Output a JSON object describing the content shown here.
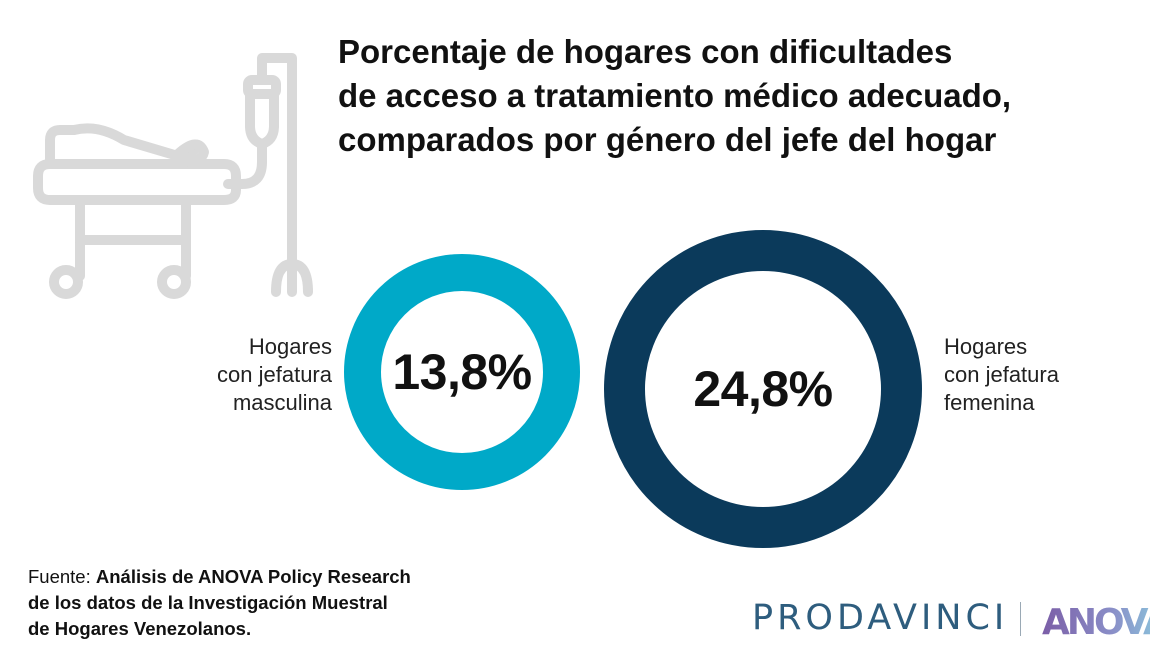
{
  "chart_data": {
    "type": "donut",
    "title_lines": [
      "Porcentaje de hogares con dificultades",
      "de acceso a tratamiento médico adecuado,",
      "comparados por género del jefe del hogar"
    ],
    "series": [
      {
        "label_lines": [
          "Hogares",
          "con jefatura",
          "masculina"
        ],
        "value": 13.8,
        "display": "13,8%",
        "color": "#00a9c8"
      },
      {
        "label_lines": [
          "Hogares",
          "con jefatura",
          "femenina"
        ],
        "value": 24.8,
        "display": "24,8%",
        "color": "#0b3a5b"
      }
    ]
  },
  "source": {
    "prefix": "Fuente: ",
    "lines": [
      "Análisis de ANOVA Policy Research",
      "de los datos de la Investigación Muestral",
      "de Hogares Venezolanos."
    ]
  },
  "logos": {
    "prodavinci": "PRODAVINCI",
    "anova": "ANOVA"
  },
  "icons": [
    "hospital-bed-iv-icon"
  ],
  "colors": {
    "illustration": "#d9d9d9",
    "prodavinci": "#2e5d7e",
    "anova_gradient": [
      "#7b5ea7",
      "#8bd0e0"
    ]
  }
}
